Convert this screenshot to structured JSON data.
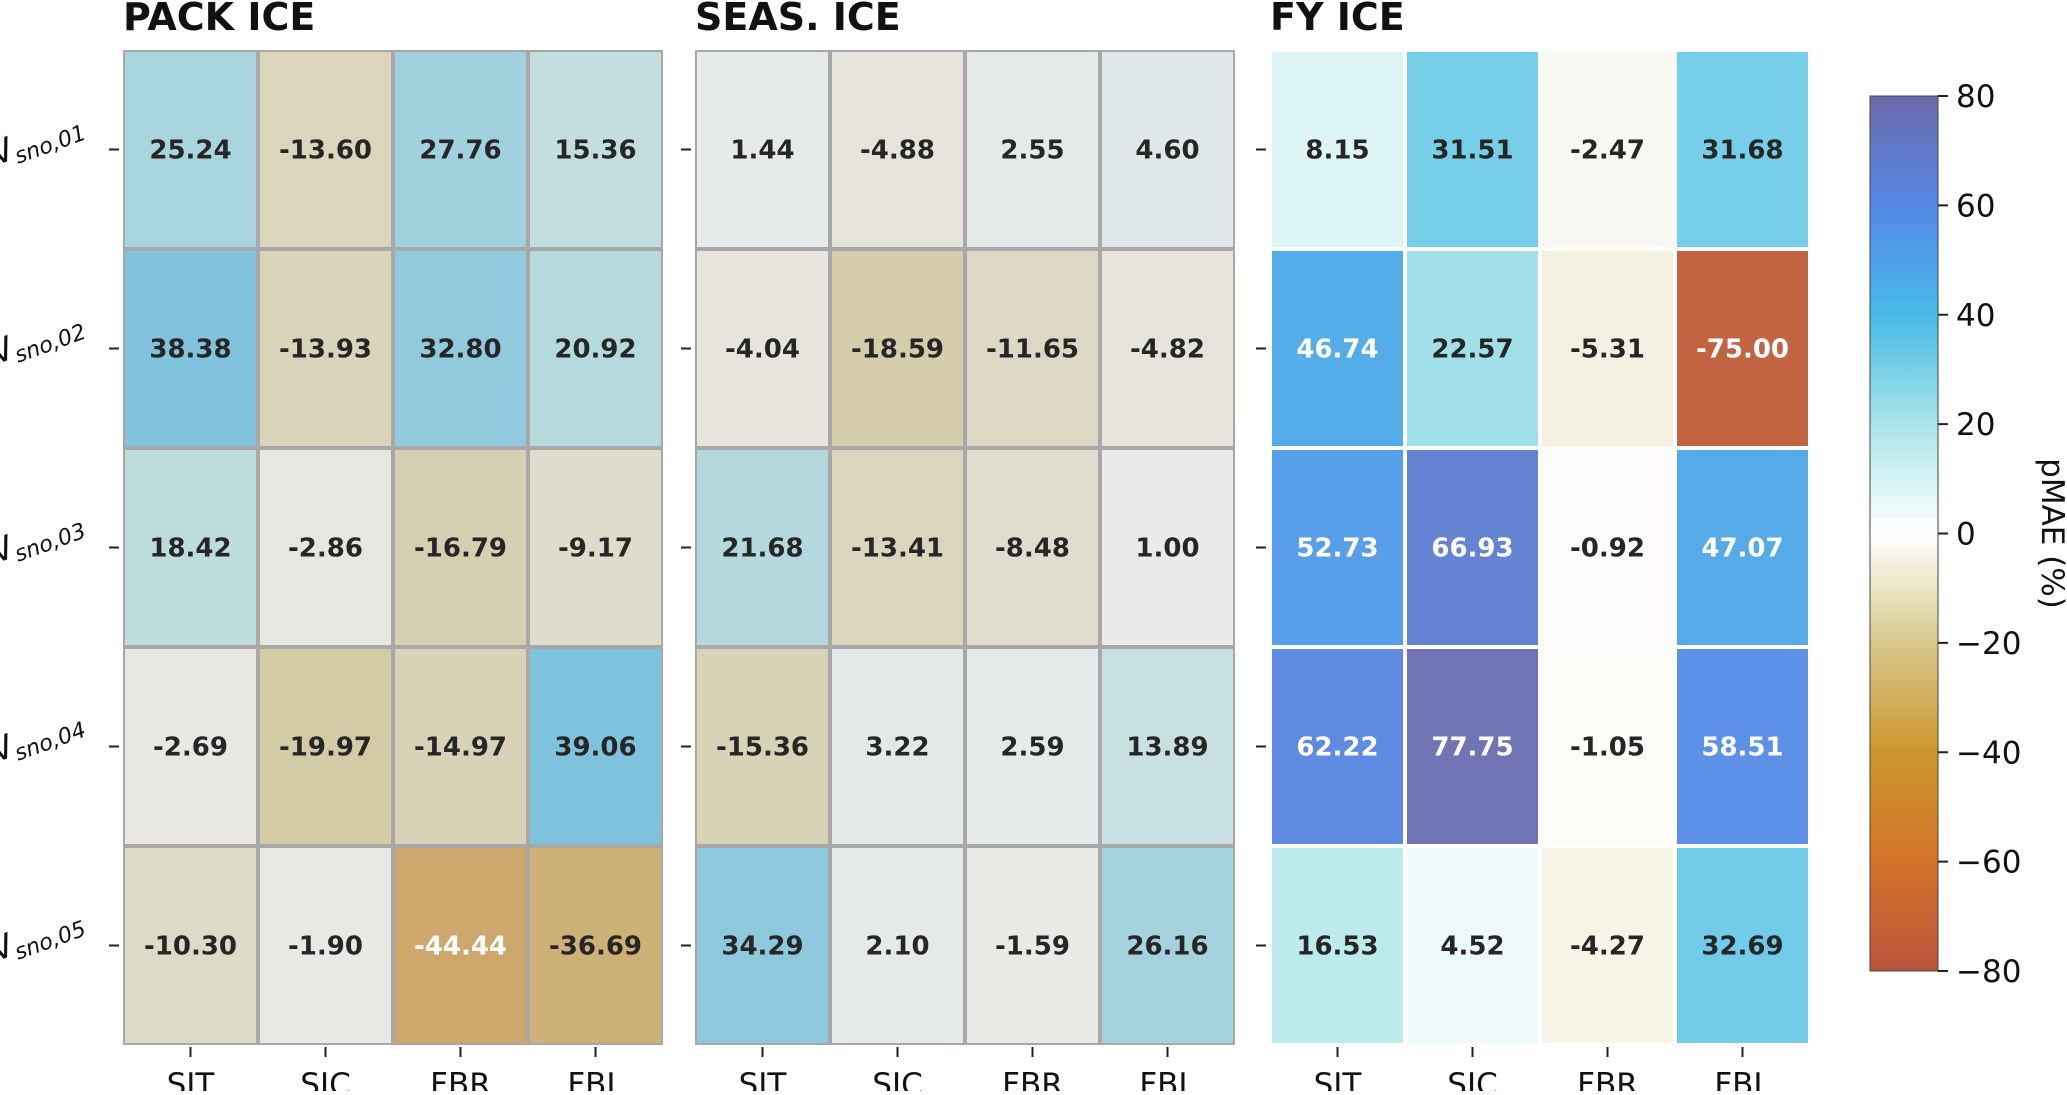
{
  "chart_data": {
    "type": "heatmap",
    "row_labels": [
      "V_{sno,01}",
      "V_{sno,02}",
      "V_{sno,03}",
      "V_{sno,04}",
      "V_{sno,05}"
    ],
    "row_labels_display": [
      {
        "main": "V",
        "sub": "sno,01"
      },
      {
        "main": "V",
        "sub": "sno,02"
      },
      {
        "main": "V",
        "sub": "sno,03"
      },
      {
        "main": "V",
        "sub": "sno,04"
      },
      {
        "main": "V",
        "sub": "sno,05"
      }
    ],
    "columns": [
      "SIT",
      "SIC",
      "FBR",
      "FBL"
    ],
    "panels": [
      {
        "title": "PACK ICE",
        "values": [
          [
            25.24,
            -13.6,
            27.76,
            15.36
          ],
          [
            38.38,
            -13.93,
            32.8,
            20.92
          ],
          [
            18.42,
            -2.86,
            -16.79,
            -9.17
          ],
          [
            -2.69,
            -19.97,
            -14.97,
            39.06
          ],
          [
            -10.3,
            -1.9,
            -44.44,
            -36.69
          ]
        ]
      },
      {
        "title": "SEAS. ICE",
        "values": [
          [
            1.44,
            -4.88,
            2.55,
            4.6
          ],
          [
            -4.04,
            -18.59,
            -11.65,
            -4.82
          ],
          [
            21.68,
            -13.41,
            -8.48,
            1.0
          ],
          [
            -15.36,
            3.22,
            2.59,
            13.89
          ],
          [
            34.29,
            2.1,
            -1.59,
            26.16
          ]
        ]
      },
      {
        "title": "FY ICE",
        "values": [
          [
            8.15,
            31.51,
            -2.47,
            31.68
          ],
          [
            46.74,
            22.57,
            -5.31,
            -75.0
          ],
          [
            52.73,
            66.93,
            -0.92,
            47.07
          ],
          [
            62.22,
            77.75,
            -1.05,
            58.51
          ],
          [
            16.53,
            4.52,
            -4.27,
            32.69
          ]
        ]
      }
    ],
    "colorbar": {
      "label": "pMAE (%)",
      "range": [
        -80,
        80
      ],
      "ticks": [
        "80",
        "60",
        "40",
        "20",
        "0",
        "−20",
        "−40",
        "−60",
        "−80"
      ]
    }
  }
}
